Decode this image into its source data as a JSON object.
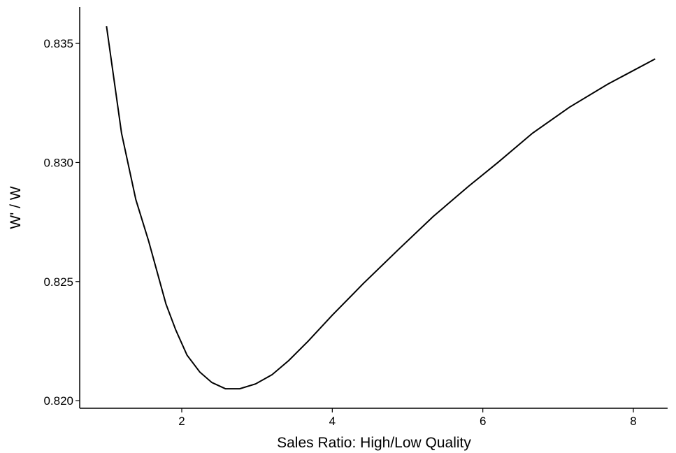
{
  "chart_data": {
    "type": "line",
    "x_label": "Sales Ratio: High/Low Quality",
    "y_label": "W' / W",
    "x": [
      1.0,
      1.2,
      1.39,
      1.56,
      1.79,
      1.92,
      2.07,
      2.24,
      2.4,
      2.58,
      2.77,
      2.98,
      3.2,
      3.42,
      3.68,
      4.0,
      4.41,
      4.88,
      5.34,
      5.81,
      6.2,
      6.66,
      7.15,
      7.66,
      8.29
    ],
    "series": [
      {
        "color": "#000000",
        "values": [
          0.83573,
          0.83123,
          0.82844,
          0.8267,
          0.82406,
          0.82297,
          0.82191,
          0.8212,
          0.82076,
          0.8205,
          0.8205,
          0.8207,
          0.82109,
          0.82168,
          0.8225,
          0.82359,
          0.82491,
          0.82635,
          0.82773,
          0.829,
          0.83,
          0.83123,
          0.83232,
          0.83329,
          0.83435
        ]
      }
    ],
    "xlim": [
      0.644,
      8.455
    ],
    "ylim": [
      0.81968,
      0.83653
    ],
    "xticks": [
      2,
      4,
      6,
      8
    ],
    "yticks": [
      {
        "value": 0.82,
        "label": "0.820"
      },
      0.825,
      {
        "value": 0.83,
        "label": "0.830"
      },
      0.835
    ],
    "grid": false
  }
}
